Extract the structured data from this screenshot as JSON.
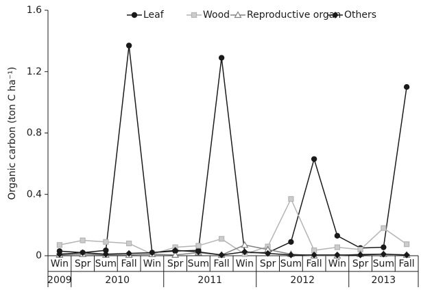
{
  "chart_data": {
    "type": "line",
    "ylabel": "Organic carbon (ton C ha⁻¹)",
    "categories": [
      "Win",
      "Spr",
      "Sum",
      "Fall",
      "Win",
      "Spr",
      "Sum",
      "Fall",
      "Win",
      "Spr",
      "Sum",
      "Fall",
      "Win",
      "Spr",
      "Sum",
      "Fall"
    ],
    "groups": [
      {
        "label": "2009",
        "span": 1
      },
      {
        "label": "2010",
        "span": 4
      },
      {
        "label": "2011",
        "span": 4
      },
      {
        "label": "2012",
        "span": 4
      },
      {
        "label": "2013",
        "span": 3
      }
    ],
    "ylim": [
      0,
      1.6
    ],
    "yticks": [
      0,
      0.4,
      0.8,
      1.2,
      1.6
    ],
    "legend": "top",
    "series": [
      {
        "name": "Leaf",
        "color": "#1a1a1a",
        "marker": "circle",
        "fill": "#1a1a1a",
        "values": [
          0.03,
          0.02,
          0.035,
          1.37,
          0.02,
          0.03,
          0.035,
          1.29,
          0.02,
          0.02,
          0.09,
          0.63,
          0.13,
          0.05,
          0.055,
          1.1
        ]
      },
      {
        "name": "Wood",
        "color": "#b3b3b3",
        "marker": "square",
        "fill": "#cccccc",
        "values": [
          0.07,
          0.1,
          0.09,
          0.08,
          0.01,
          0.055,
          0.065,
          0.11,
          0.01,
          0.06,
          0.37,
          0.035,
          0.055,
          0.04,
          0.18,
          0.075
        ]
      },
      {
        "name": "Reproductive organ",
        "color": "#808080",
        "marker": "triangle",
        "fill": "#ffffff",
        "values": [
          0.005,
          0.01,
          0.005,
          0.005,
          0.01,
          0.005,
          0.02,
          0.005,
          0.07,
          0.04,
          0.01,
          0.0,
          0.0,
          0.01,
          0.01,
          0.005
        ]
      },
      {
        "name": "Others",
        "color": "#1a1a1a",
        "marker": "diamond",
        "fill": "#1a1a1a",
        "values": [
          0.01,
          0.02,
          0.01,
          0.015,
          0.02,
          0.035,
          0.025,
          0.005,
          0.025,
          0.015,
          0.005,
          0.005,
          0.005,
          0.005,
          0.01,
          0.005
        ]
      }
    ]
  }
}
